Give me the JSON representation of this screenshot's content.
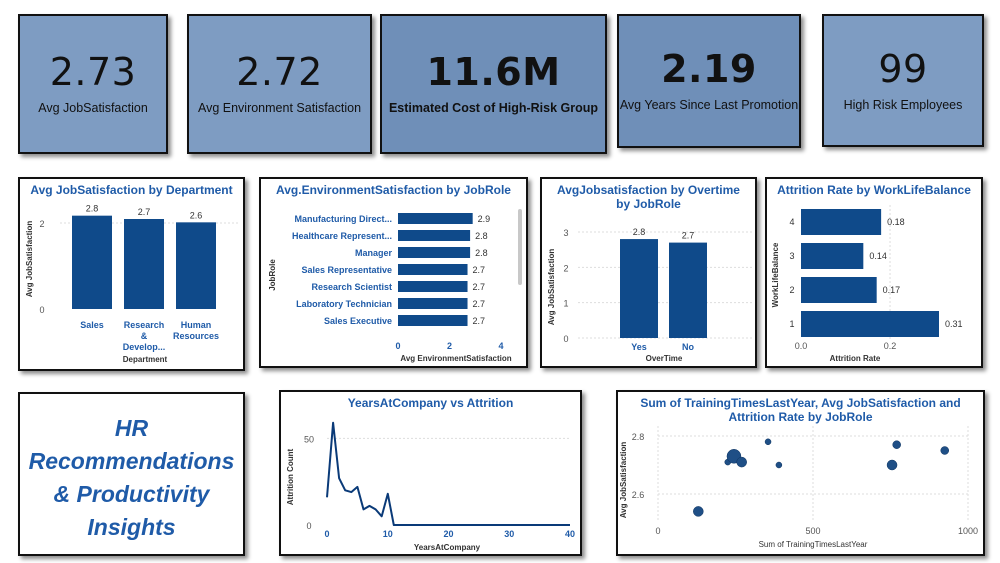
{
  "kpis": [
    {
      "value": "2.73",
      "label": "Avg JobSatisfaction"
    },
    {
      "value": "2.72",
      "label": "Avg Environment Satisfaction"
    },
    {
      "value": "11.6M",
      "label": "Estimated Cost of High-Risk Group"
    },
    {
      "value": "2.19",
      "label": "Avg Years Since Last Promotion"
    },
    {
      "value": "99",
      "label": "High Risk Employees"
    }
  ],
  "hr_title": {
    "line1": "HR",
    "line2": "Recommendations",
    "line3": "& Productivity",
    "line4": "Insights"
  },
  "colors": {
    "bar": "#0f4a8a",
    "kpi_bg": "#7e9cc2",
    "title": "#1f5ba8"
  },
  "chart_data": [
    {
      "id": "dept",
      "type": "bar",
      "title": "Avg JobSatisfaction by Department",
      "categories": [
        [
          "Sales"
        ],
        [
          "Research",
          "&",
          "Develop..."
        ],
        [
          "Human",
          "Resources"
        ]
      ],
      "values": [
        2.8,
        2.7,
        2.6
      ],
      "data_labels": [
        "2.8",
        "2.7",
        "2.6"
      ],
      "xlabel": "Department",
      "ylabel": "Avg JobSatisfaction",
      "ylim": [
        0,
        3
      ],
      "yticks": [
        "2",
        "0"
      ]
    },
    {
      "id": "env",
      "type": "bar",
      "orientation": "horizontal",
      "title": "Avg.EnvironmentSatisfaction by JobRole",
      "categories": [
        "Manufacturing Direct...",
        "Healthcare Represent...",
        "Manager",
        "Sales Representative",
        "Research Scientist",
        "Laboratory Technician",
        "Sales Executive"
      ],
      "values": [
        2.9,
        2.8,
        2.8,
        2.7,
        2.7,
        2.7,
        2.7
      ],
      "data_labels": [
        "2.9",
        "2.8",
        "2.8",
        "2.7",
        "2.7",
        "2.7",
        "2.7"
      ],
      "xlabel": "Avg EnvironmentSatisfaction",
      "ylabel": "JobRole",
      "xlim": [
        0,
        4
      ],
      "xticks": [
        "0",
        "2",
        "4"
      ]
    },
    {
      "id": "overtime",
      "type": "bar",
      "title": "AvgJobsatisfaction by Overtime by JobRole",
      "categories": [
        "Yes",
        "No"
      ],
      "values": [
        2.8,
        2.7
      ],
      "data_labels": [
        "2.8",
        "2.7"
      ],
      "xlabel": "OverTime",
      "ylabel": "Avg JobSatisfaction",
      "ylim": [
        0,
        3
      ],
      "yticks": [
        "3",
        "2",
        "1",
        "0"
      ]
    },
    {
      "id": "wlb",
      "type": "bar",
      "orientation": "horizontal",
      "title": "Attrition Rate by WorkLifeBalance",
      "categories": [
        "4",
        "3",
        "2",
        "1"
      ],
      "values": [
        0.18,
        0.14,
        0.17,
        0.31
      ],
      "data_labels": [
        "0.18",
        "0.14",
        "0.17",
        "0.31"
      ],
      "xlabel": "Attrition Rate",
      "ylabel": "WorkLifeBalance",
      "xlim": [
        0,
        0.35
      ],
      "xticks": [
        "0.0",
        "0.2"
      ]
    },
    {
      "id": "years",
      "type": "line",
      "title": "YearsAtCompany vs Attrition",
      "x": [
        0,
        1,
        2,
        3,
        4,
        5,
        6,
        7,
        8,
        9,
        10,
        11,
        12,
        13,
        14,
        15,
        20,
        25,
        30,
        35,
        40
      ],
      "values": [
        16,
        59,
        27,
        20,
        19,
        22,
        9,
        11,
        9,
        5,
        18,
        0,
        0,
        0,
        0,
        0,
        0,
        0,
        0,
        0,
        0
      ],
      "xlabel": "YearsAtCompany",
      "ylabel": "Attrition Count",
      "xlim": [
        0,
        40
      ],
      "ylim": [
        0,
        60
      ],
      "xticks": [
        "0",
        "10",
        "20",
        "30",
        "40"
      ],
      "yticks": [
        "50",
        "0"
      ]
    },
    {
      "id": "training",
      "type": "scatter",
      "title": "Sum of TrainingTimesLastYear, Avg JobSatisfaction and Attrition Rate by JobRole",
      "title_line1": "Sum of TrainingTimesLastYear, Avg JobSatisfaction and",
      "title_line2": "Attrition Rate by JobRole",
      "points": [
        {
          "x": 130,
          "y": 2.54,
          "size": 5
        },
        {
          "x": 225,
          "y": 2.71,
          "size": 3
        },
        {
          "x": 245,
          "y": 2.73,
          "size": 7
        },
        {
          "x": 270,
          "y": 2.71,
          "size": 5
        },
        {
          "x": 355,
          "y": 2.78,
          "size": 3
        },
        {
          "x": 390,
          "y": 2.7,
          "size": 3
        },
        {
          "x": 755,
          "y": 2.7,
          "size": 5
        },
        {
          "x": 770,
          "y": 2.77,
          "size": 4
        },
        {
          "x": 925,
          "y": 2.75,
          "size": 4
        }
      ],
      "xlabel": "Sum of TrainingTimesLastYear",
      "ylabel": "Avg JobSatisfaction",
      "xlim": [
        0,
        1000
      ],
      "ylim": [
        2.5,
        2.8
      ],
      "xticks": [
        "0",
        "500",
        "1000"
      ],
      "yticks": [
        "2.8",
        "2.6"
      ]
    }
  ]
}
